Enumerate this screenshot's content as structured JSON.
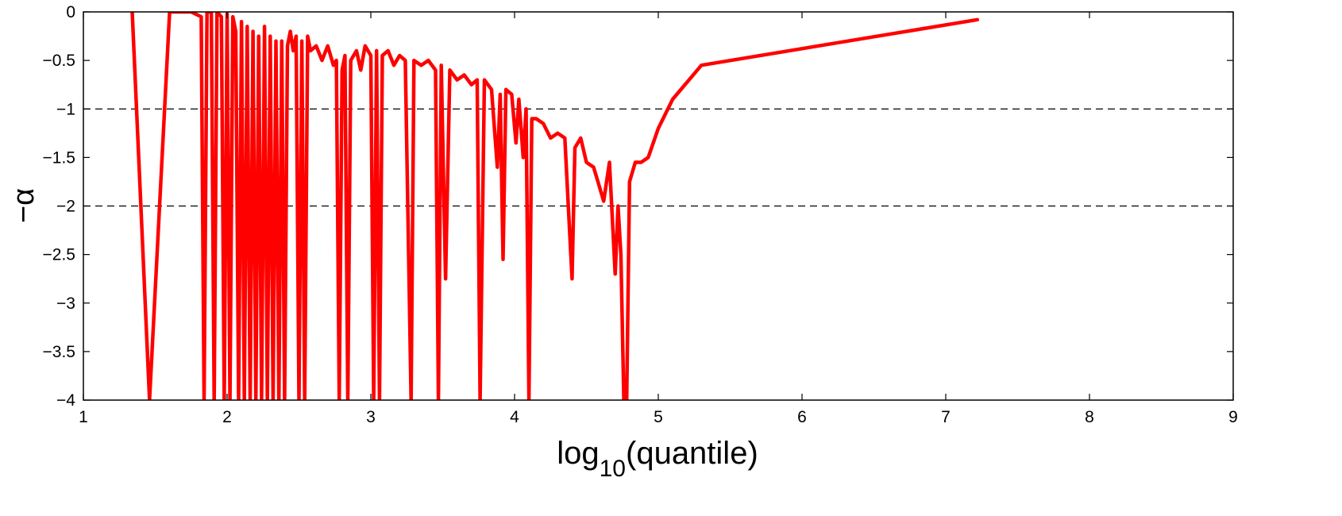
{
  "chart_data": {
    "type": "line",
    "xlabel": {
      "base": "log",
      "sub": "10",
      "rest": "(quantile)"
    },
    "ylabel": "−α",
    "xlim": [
      1,
      9
    ],
    "ylim": [
      -4,
      0
    ],
    "xticks": [
      1,
      2,
      3,
      4,
      5,
      6,
      7,
      8,
      9
    ],
    "yticks": [
      0,
      -0.5,
      -1,
      -1.5,
      -2,
      -2.5,
      -3,
      -3.5,
      -4
    ],
    "xtick_labels": [
      "1",
      "2",
      "3",
      "4",
      "5",
      "6",
      "7",
      "8",
      "9"
    ],
    "ytick_labels": [
      "0",
      "−0.5",
      "−1",
      "−1.5",
      "−2",
      "−2.5",
      "−3",
      "−3.5",
      "−4"
    ],
    "reference_lines": [
      {
        "y": -1,
        "style": "dashed"
      },
      {
        "y": -2,
        "style": "dashed"
      }
    ],
    "grid": false,
    "series": [
      {
        "color": "#ff0000",
        "points": [
          [
            1.34,
            0
          ],
          [
            1.46,
            -4
          ],
          [
            1.6,
            0
          ],
          [
            1.75,
            0
          ],
          [
            1.82,
            -0.05
          ],
          [
            1.84,
            -4
          ],
          [
            1.86,
            0
          ],
          [
            1.89,
            0
          ],
          [
            1.91,
            -4
          ],
          [
            1.93,
            0
          ],
          [
            1.96,
            -0.05
          ],
          [
            1.98,
            -4
          ],
          [
            2.0,
            -0.02
          ],
          [
            2.02,
            -4
          ],
          [
            2.04,
            -0.05
          ],
          [
            2.06,
            -0.2
          ],
          [
            2.08,
            -4
          ],
          [
            2.1,
            -0.1
          ],
          [
            2.12,
            -4
          ],
          [
            2.14,
            -0.15
          ],
          [
            2.16,
            -4
          ],
          [
            2.18,
            -0.2
          ],
          [
            2.2,
            -4
          ],
          [
            2.22,
            -0.25
          ],
          [
            2.24,
            -4
          ],
          [
            2.26,
            -0.15
          ],
          [
            2.28,
            -4
          ],
          [
            2.3,
            -0.25
          ],
          [
            2.32,
            -4
          ],
          [
            2.34,
            -0.3
          ],
          [
            2.36,
            -4
          ],
          [
            2.38,
            -0.3
          ],
          [
            2.4,
            -4
          ],
          [
            2.42,
            -0.35
          ],
          [
            2.44,
            -0.2
          ],
          [
            2.46,
            -0.4
          ],
          [
            2.48,
            -0.25
          ],
          [
            2.5,
            -4
          ],
          [
            2.52,
            -0.3
          ],
          [
            2.54,
            -4
          ],
          [
            2.56,
            -0.25
          ],
          [
            2.58,
            -0.4
          ],
          [
            2.62,
            -0.35
          ],
          [
            2.66,
            -0.5
          ],
          [
            2.7,
            -0.35
          ],
          [
            2.74,
            -0.55
          ],
          [
            2.76,
            -0.5
          ],
          [
            2.78,
            -4
          ],
          [
            2.8,
            -0.6
          ],
          [
            2.82,
            -0.45
          ],
          [
            2.84,
            -4
          ],
          [
            2.86,
            -0.5
          ],
          [
            2.9,
            -0.4
          ],
          [
            2.93,
            -0.6
          ],
          [
            2.96,
            -0.35
          ],
          [
            3.0,
            -0.45
          ],
          [
            3.02,
            -4
          ],
          [
            3.04,
            -0.4
          ],
          [
            3.06,
            -4
          ],
          [
            3.08,
            -0.45
          ],
          [
            3.12,
            -0.4
          ],
          [
            3.16,
            -0.55
          ],
          [
            3.2,
            -0.45
          ],
          [
            3.24,
            -0.5
          ],
          [
            3.28,
            -4
          ],
          [
            3.3,
            -0.5
          ],
          [
            3.35,
            -0.55
          ],
          [
            3.4,
            -0.5
          ],
          [
            3.45,
            -0.6
          ],
          [
            3.47,
            -4
          ],
          [
            3.49,
            -0.55
          ],
          [
            3.52,
            -2.75
          ],
          [
            3.55,
            -0.6
          ],
          [
            3.6,
            -0.7
          ],
          [
            3.65,
            -0.65
          ],
          [
            3.7,
            -0.75
          ],
          [
            3.74,
            -0.7
          ],
          [
            3.76,
            -4
          ],
          [
            3.79,
            -0.7
          ],
          [
            3.84,
            -0.8
          ],
          [
            3.88,
            -1.6
          ],
          [
            3.9,
            -0.85
          ],
          [
            3.92,
            -2.55
          ],
          [
            3.94,
            -0.8
          ],
          [
            3.98,
            -0.85
          ],
          [
            4.01,
            -1.35
          ],
          [
            4.03,
            -0.9
          ],
          [
            4.06,
            -1.5
          ],
          [
            4.08,
            -1.0
          ],
          [
            4.1,
            -4
          ],
          [
            4.12,
            -1.1
          ],
          [
            4.15,
            -1.1
          ],
          [
            4.2,
            -1.15
          ],
          [
            4.25,
            -1.3
          ],
          [
            4.3,
            -1.25
          ],
          [
            4.35,
            -1.3
          ],
          [
            4.4,
            -2.75
          ],
          [
            4.42,
            -1.4
          ],
          [
            4.46,
            -1.3
          ],
          [
            4.5,
            -1.55
          ],
          [
            4.55,
            -1.6
          ],
          [
            4.58,
            -1.75
          ],
          [
            4.62,
            -1.95
          ],
          [
            4.66,
            -1.55
          ],
          [
            4.7,
            -2.7
          ],
          [
            4.72,
            -2.0
          ],
          [
            4.74,
            -2.5
          ],
          [
            4.76,
            -4
          ],
          [
            4.78,
            -4
          ],
          [
            4.8,
            -1.75
          ],
          [
            4.84,
            -1.55
          ],
          [
            4.88,
            -1.55
          ],
          [
            4.93,
            -1.5
          ],
          [
            5.0,
            -1.2
          ],
          [
            5.1,
            -0.9
          ],
          [
            5.3,
            -0.55
          ],
          [
            7.22,
            -0.08
          ]
        ]
      }
    ]
  }
}
